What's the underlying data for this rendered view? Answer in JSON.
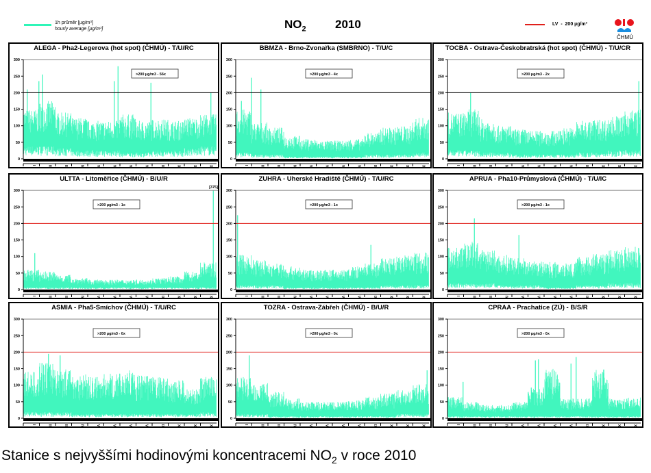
{
  "header": {
    "legend_cz": "1h průměr [µg/m³]",
    "legend_en": "hourly average [µg/m³]",
    "title_main": "NO",
    "title_sub": "2",
    "year": "2010",
    "lv_legend": "LV  -  200 µg/m³",
    "logo_text": "ČHMÚ"
  },
  "caption": {
    "pre": "Stanice s nejvyššími hodinovými koncentracemi NO",
    "sub": "2",
    "post": " v roce 2010"
  },
  "colors": {
    "series": "#2ff5b8",
    "lv_line": "#e0201b",
    "grid": "#808080",
    "axis": "#000000"
  },
  "chart_data": {
    "type": "bar",
    "description_units": "µg/m³",
    "yticks": [
      0,
      50,
      100,
      150,
      200,
      250,
      300
    ],
    "ylim": [
      0,
      300
    ],
    "limit_value": 200,
    "months": [
      "I",
      "II",
      "III",
      "IV",
      "V",
      "VI",
      "VII",
      "VIII",
      "IX",
      "X",
      "XI",
      "XII"
    ],
    "panels": [
      {
        "title": "ALEGA - Pha2-Legerova (hot spot) (ČHMÚ) - T/U/RC",
        "exceedances": ">200 µg/m3 - 56x",
        "lv_color": "#000000",
        "monthly_upper": [
          150,
          175,
          140,
          125,
          115,
          115,
          135,
          115,
          120,
          115,
          125,
          135
        ],
        "monthly_lower": [
          30,
          30,
          25,
          20,
          20,
          20,
          15,
          15,
          20,
          20,
          25,
          30
        ],
        "peaks": [
          [
            0.1,
            255
          ],
          [
            0.08,
            235
          ],
          [
            0.49,
            280
          ],
          [
            0.47,
            235
          ],
          [
            0.66,
            230
          ],
          [
            0.02,
            210
          ],
          [
            0.97,
            200
          ]
        ]
      },
      {
        "title": "BBMZA - Brno-Zvonařka (SMBRNO) - T/U/C",
        "exceedances": ">200 µg/m3 - 4x",
        "lv_color": "#000000",
        "monthly_upper": [
          150,
          110,
          95,
          70,
          60,
          55,
          55,
          60,
          80,
          95,
          100,
          125
        ],
        "monthly_lower": [
          15,
          10,
          10,
          5,
          5,
          5,
          5,
          5,
          10,
          10,
          10,
          15
        ],
        "peaks": [
          [
            0.08,
            245
          ],
          [
            0.13,
            210
          ],
          [
            0.03,
            175
          ]
        ]
      },
      {
        "title": "TOCBA - Ostrava-Českobratrská (hot spot) (ČHMÚ) - T/U/CR",
        "exceedances": ">200 µg/m3 - 2x",
        "lv_color": "#000000",
        "monthly_upper": [
          140,
          150,
          120,
          100,
          90,
          85,
          85,
          95,
          115,
          120,
          130,
          150
        ],
        "monthly_lower": [
          20,
          20,
          15,
          15,
          10,
          10,
          10,
          10,
          15,
          15,
          20,
          20
        ],
        "peaks": [
          [
            0.12,
            200
          ],
          [
            0.99,
            235
          ]
        ]
      },
      {
        "title": "ULTTA - Litoměřice (ČHMÚ) - B/U/R",
        "exceedances": ">200 µg/m3 - 1x",
        "lv_color": "#e0201b",
        "off_scale_label": "[375]",
        "monthly_upper": [
          60,
          55,
          45,
          35,
          30,
          30,
          30,
          30,
          35,
          40,
          55,
          85
        ],
        "monthly_lower": [
          5,
          5,
          5,
          5,
          5,
          5,
          5,
          5,
          5,
          5,
          5,
          5
        ],
        "peaks": [
          [
            0.984,
            375
          ],
          [
            0.06,
            110
          ]
        ]
      },
      {
        "title": "ZUHRA - Uherské Hradiště (ČHMÚ) - T/U/RC",
        "exceedances": ">200 µg/m3 - 1x",
        "lv_color": "#e0201b",
        "monthly_upper": [
          105,
          90,
          80,
          70,
          60,
          60,
          60,
          70,
          80,
          95,
          105,
          115
        ],
        "monthly_lower": [
          10,
          10,
          10,
          5,
          5,
          5,
          5,
          5,
          5,
          10,
          10,
          10
        ],
        "peaks": [
          [
            0.01,
            225
          ],
          [
            0.7,
            135
          ]
        ]
      },
      {
        "title": "APRUA - Pha10-Průmyslová (ČHMÚ) - T/U/IC",
        "exceedances": ">200 µg/m3 - 1x",
        "lv_color": "#e0201b",
        "monthly_upper": [
          130,
          145,
          120,
          105,
          95,
          85,
          85,
          85,
          100,
          110,
          120,
          135
        ],
        "monthly_lower": [
          15,
          15,
          15,
          10,
          10,
          10,
          5,
          5,
          10,
          10,
          15,
          15
        ],
        "peaks": [
          [
            0.14,
            215
          ],
          [
            0.37,
            165
          ]
        ]
      },
      {
        "title": "ASMIA - Pha5-Smíchov (ČHMÚ) - T/U/RC",
        "exceedances": ">200 µg/m3 - 0x",
        "lv_color": "#e0201b",
        "monthly_upper": [
          140,
          170,
          150,
          135,
          125,
          135,
          145,
          130,
          125,
          115,
          90,
          125
        ],
        "monthly_lower": [
          15,
          15,
          15,
          10,
          10,
          10,
          10,
          10,
          10,
          10,
          10,
          15
        ],
        "peaks": [
          [
            0.13,
            195
          ],
          [
            0.19,
            190
          ]
        ]
      },
      {
        "title": "TOZRA - Ostrava-Zábřeh (ČHMÚ) - B/U/R",
        "exceedances": ">200 µg/m3 - 0x",
        "lv_color": "#e0201b",
        "monthly_upper": [
          125,
          110,
          80,
          60,
          50,
          50,
          50,
          55,
          65,
          75,
          85,
          105
        ],
        "monthly_lower": [
          10,
          10,
          5,
          5,
          5,
          5,
          5,
          5,
          5,
          5,
          10,
          10
        ],
        "peaks": [
          [
            0.07,
            190
          ],
          [
            0.99,
            145
          ]
        ]
      },
      {
        "title": "CPRAA - Prachatice (ZÚ) - B/S/R",
        "exceedances": ">200 µg/m3 - 0x",
        "lv_color": "#e0201b",
        "monthly_upper": [
          65,
          50,
          40,
          40,
          50,
          95,
          150,
          60,
          60,
          150,
          60,
          65
        ],
        "monthly_lower": [
          5,
          5,
          5,
          5,
          5,
          5,
          5,
          5,
          5,
          5,
          5,
          5
        ],
        "peaks": [
          [
            0.455,
            175
          ],
          [
            0.47,
            178
          ],
          [
            0.665,
            185
          ],
          [
            0.64,
            165
          ],
          [
            0.08,
            110
          ]
        ]
      }
    ]
  }
}
